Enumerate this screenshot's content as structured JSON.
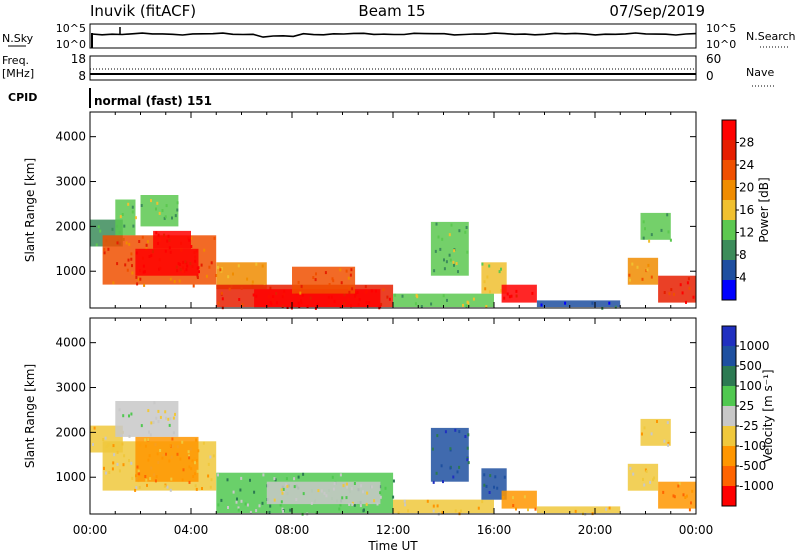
{
  "header": {
    "station": "Inuvik (fitACF)",
    "beam": "Beam 15",
    "date": "07/Sep/2019"
  },
  "strip_panels": {
    "nsky_label": "N.Sky",
    "nsearch_label": "N.Search",
    "noise_ticks_left": [
      "10^5",
      "10^0"
    ],
    "noise_ticks_right": [
      "10^5",
      "10^0"
    ],
    "freq_label_line1": "Freq.",
    "freq_label_line2": "[MHz]",
    "freq_ticks": [
      "18",
      "8"
    ],
    "nave_label": "Nave",
    "nave_ticks": [
      "60",
      "0"
    ],
    "cpid_label": "CPID",
    "cpid_value": "normal (fast) 151"
  },
  "colors": {
    "power": [
      "#0000ff",
      "#1f4fa0",
      "#3c8c5a",
      "#5cc850",
      "#f0c030",
      "#f08c00",
      "#f05000",
      "#e61e00",
      "#ff0000"
    ],
    "velocity": [
      "#ff0000",
      "#ff6400",
      "#ff9600",
      "#f0c83c",
      "#c8c8c8",
      "#50c850",
      "#2c7a52",
      "#1e50a0",
      "#2030c0"
    ]
  },
  "chart_data": [
    {
      "type": "heatmap",
      "quantity": "power",
      "ylabel": "Slant Range [km]",
      "ylim": [
        180,
        4550
      ],
      "yticks": [
        1000,
        2000,
        3000,
        4000
      ],
      "xlim": [
        0,
        24
      ],
      "colorbar_label": "Power [dB]",
      "colorbar_ticks": [
        "4",
        "8",
        "12",
        "16",
        "20",
        "24",
        "28"
      ],
      "regions": [
        {
          "t0": 0.0,
          "t1": 1.3,
          "r0": 1550,
          "r1": 2150,
          "level": 2
        },
        {
          "t0": 1.0,
          "t1": 1.8,
          "r0": 1800,
          "r1": 2600,
          "level": 3
        },
        {
          "t0": 2.0,
          "t1": 3.5,
          "r0": 2000,
          "r1": 2700,
          "level": 3
        },
        {
          "t0": 0.5,
          "t1": 5.0,
          "r0": 700,
          "r1": 1800,
          "level": 6
        },
        {
          "t0": 1.8,
          "t1": 4.3,
          "r0": 900,
          "r1": 1500,
          "level": 8
        },
        {
          "t0": 2.5,
          "t1": 4.0,
          "r0": 1500,
          "r1": 1900,
          "level": 8
        },
        {
          "t0": 5.0,
          "t1": 7.0,
          "r0": 600,
          "r1": 1200,
          "level": 5
        },
        {
          "t0": 5.0,
          "t1": 12.0,
          "r0": 200,
          "r1": 700,
          "level": 7
        },
        {
          "t0": 6.5,
          "t1": 11.5,
          "r0": 200,
          "r1": 600,
          "level": 8
        },
        {
          "t0": 8.0,
          "t1": 10.5,
          "r0": 500,
          "r1": 1100,
          "level": 6
        },
        {
          "t0": 12.0,
          "t1": 16.0,
          "r0": 200,
          "r1": 500,
          "level": 3
        },
        {
          "t0": 13.5,
          "t1": 15.0,
          "r0": 900,
          "r1": 2100,
          "level": 3
        },
        {
          "t0": 15.5,
          "t1": 16.5,
          "r0": 500,
          "r1": 1200,
          "level": 4
        },
        {
          "t0": 16.3,
          "t1": 17.7,
          "r0": 300,
          "r1": 700,
          "level": 8
        },
        {
          "t0": 17.7,
          "t1": 21.0,
          "r0": 200,
          "r1": 350,
          "level": 1
        },
        {
          "t0": 21.3,
          "t1": 22.5,
          "r0": 700,
          "r1": 1300,
          "level": 5
        },
        {
          "t0": 21.8,
          "t1": 23.0,
          "r0": 1700,
          "r1": 2300,
          "level": 3
        },
        {
          "t0": 22.5,
          "t1": 24.0,
          "r0": 300,
          "r1": 900,
          "level": 7
        }
      ]
    },
    {
      "type": "heatmap",
      "quantity": "velocity",
      "ylabel": "Slant Range [km]",
      "ylim": [
        180,
        4550
      ],
      "yticks": [
        1000,
        2000,
        3000,
        4000
      ],
      "xlim": [
        0,
        24
      ],
      "colorbar_label": "Velocity [m s⁻¹]",
      "colorbar_ticks": [
        "-1000",
        "-500",
        "-100",
        "-25",
        "25",
        "100",
        "500",
        "1000"
      ],
      "regions": [
        {
          "t0": 0.0,
          "t1": 1.3,
          "r0": 1550,
          "r1": 2150,
          "level": 3
        },
        {
          "t0": 1.0,
          "t1": 3.5,
          "r0": 1900,
          "r1": 2700,
          "level": 4
        },
        {
          "t0": 0.5,
          "t1": 5.0,
          "r0": 700,
          "r1": 1800,
          "level": 3
        },
        {
          "t0": 1.8,
          "t1": 4.3,
          "r0": 900,
          "r1": 1900,
          "level": 2
        },
        {
          "t0": 5.0,
          "t1": 12.0,
          "r0": 200,
          "r1": 1100,
          "level": 5
        },
        {
          "t0": 7.0,
          "t1": 11.5,
          "r0": 400,
          "r1": 900,
          "level": 4
        },
        {
          "t0": 12.0,
          "t1": 16.0,
          "r0": 200,
          "r1": 500,
          "level": 3
        },
        {
          "t0": 13.5,
          "t1": 15.0,
          "r0": 900,
          "r1": 2100,
          "level": 7
        },
        {
          "t0": 15.5,
          "t1": 16.5,
          "r0": 500,
          "r1": 1200,
          "level": 7
        },
        {
          "t0": 16.3,
          "t1": 17.7,
          "r0": 300,
          "r1": 700,
          "level": 2
        },
        {
          "t0": 17.7,
          "t1": 21.0,
          "r0": 200,
          "r1": 350,
          "level": 3
        },
        {
          "t0": 21.3,
          "t1": 22.5,
          "r0": 700,
          "r1": 1300,
          "level": 3
        },
        {
          "t0": 21.8,
          "t1": 23.0,
          "r0": 1700,
          "r1": 2300,
          "level": 3
        },
        {
          "t0": 22.5,
          "t1": 24.0,
          "r0": 300,
          "r1": 900,
          "level": 2
        }
      ]
    }
  ],
  "xaxis": {
    "label": "Time UT",
    "ticks": [
      {
        "t": 0,
        "label": "00:00"
      },
      {
        "t": 4,
        "label": "04:00"
      },
      {
        "t": 8,
        "label": "08:00"
      },
      {
        "t": 12,
        "label": "12:00"
      },
      {
        "t": 16,
        "label": "16:00"
      },
      {
        "t": 20,
        "label": "20:00"
      },
      {
        "t": 24,
        "label": "00:00"
      }
    ]
  }
}
